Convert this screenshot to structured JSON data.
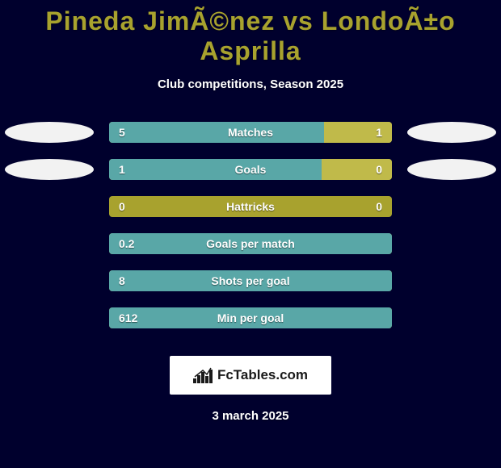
{
  "colors": {
    "background": "#00002d",
    "title": "#a8a22e",
    "text": "#ffffff",
    "bar_track": "#a8a22e",
    "bar_left_fill": "#59a7a7",
    "bar_right_fill": "#c0ba4a",
    "avatar_fill": "#f2f2f2",
    "logo_bg": "#ffffff",
    "logo_text": "#1a1a1a"
  },
  "title": "Pineda JimÃ©nez vs LondoÃ±o Asprilla",
  "subtitle": "Club competitions, Season 2025",
  "title_fontsize": 32,
  "subtitle_fontsize": 15,
  "bar_track_width": 350,
  "bar_track_height": 26,
  "row_gap": 20,
  "stats": [
    {
      "label": "Matches",
      "left_value": "5",
      "right_value": "1",
      "left_pct": 76,
      "right_pct": 24,
      "show_avatars": true
    },
    {
      "label": "Goals",
      "left_value": "1",
      "right_value": "0",
      "left_pct": 75,
      "right_pct": 25,
      "show_avatars": true
    },
    {
      "label": "Hattricks",
      "left_value": "0",
      "right_value": "0",
      "left_pct": 0,
      "right_pct": 0,
      "show_avatars": false
    },
    {
      "label": "Goals per match",
      "left_value": "0.2",
      "right_value": "",
      "left_pct": 100,
      "right_pct": 0,
      "show_avatars": false
    },
    {
      "label": "Shots per goal",
      "left_value": "8",
      "right_value": "",
      "left_pct": 100,
      "right_pct": 0,
      "show_avatars": false
    },
    {
      "label": "Min per goal",
      "left_value": "612",
      "right_value": "",
      "left_pct": 100,
      "right_pct": 0,
      "show_avatars": false
    }
  ],
  "logo_text": "FcTables.com",
  "date": "3 march 2025"
}
